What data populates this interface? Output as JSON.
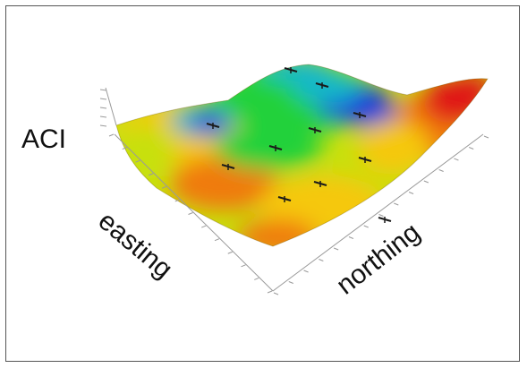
{
  "chart_data": {
    "type": "surface",
    "zlabel": "ACI",
    "xlabel": "easting",
    "ylabel": "northing",
    "colormap": [
      "#1f3fd9",
      "#18b8c9",
      "#22d13a",
      "#c8e00e",
      "#f5c80e",
      "#f07a10",
      "#e01414"
    ],
    "grid": false,
    "has_sample_point_markers": true
  }
}
